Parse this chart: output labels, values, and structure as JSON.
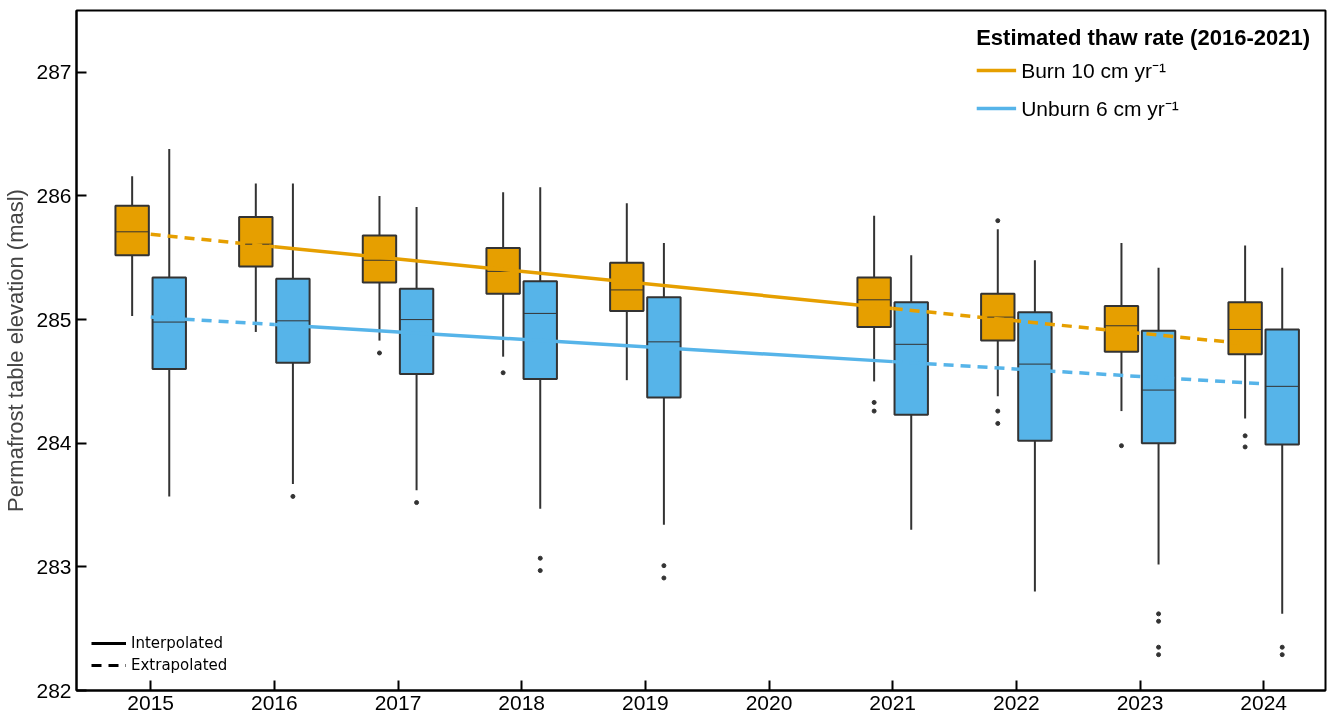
{
  "chart_data": {
    "type": "box",
    "ylabel": "Permafrost table elevation (masl)",
    "legend_title": "Estimated thaw rate (2016-2021)",
    "legend": "top right",
    "grid": false,
    "xlim": [
      2014.4,
      2024.5
    ],
    "xticks": [
      2015,
      2016,
      2017,
      2018,
      2019,
      2020,
      2021,
      2022,
      2023,
      2024
    ],
    "ylim": [
      282,
      287.5
    ],
    "yticks": [
      282,
      283,
      284,
      285,
      286,
      287
    ],
    "series": [
      {
        "color": "#e69f00",
        "x": [
          2014.85,
          2015.85,
          2016.85,
          2017.85,
          2018.85,
          2020.85,
          2021.85,
          2022.85,
          2023.85
        ],
        "boxes": [
          {
            "low": 285.03,
            "q1": 285.52,
            "median": 285.71,
            "q3": 285.92,
            "high": 286.16
          },
          {
            "low": 284.9,
            "q1": 285.43,
            "median": 285.61,
            "q3": 285.83,
            "high": 286.1
          },
          {
            "low": 284.83,
            "q1": 285.3,
            "median": 285.48,
            "q3": 285.68,
            "high": 286.0,
            "outliers": [
              284.73
            ]
          },
          {
            "low": 284.7,
            "q1": 285.21,
            "median": 285.39,
            "q3": 285.58,
            "high": 286.03,
            "outliers": [
              284.57
            ]
          },
          {
            "low": 284.51,
            "q1": 285.07,
            "median": 285.24,
            "q3": 285.46,
            "high": 285.94
          },
          {
            "low": 284.5,
            "q1": 284.94,
            "median": 285.16,
            "q3": 285.34,
            "high": 285.84,
            "outliers": [
              284.33,
              284.26
            ]
          },
          {
            "low": 284.38,
            "q1": 284.83,
            "median": 285.02,
            "q3": 285.21,
            "high": 285.73,
            "outliers": [
              285.8,
              284.26,
              284.16
            ]
          },
          {
            "low": 284.26,
            "q1": 284.74,
            "median": 284.95,
            "q3": 285.11,
            "high": 285.62,
            "outliers": [
              283.98
            ]
          },
          {
            "low": 284.2,
            "q1": 284.72,
            "median": 284.92,
            "q3": 285.14,
            "high": 285.6,
            "outliers": [
              284.06,
              283.97
            ]
          }
        ]
      },
      {
        "color": "#56b4e9",
        "x": [
          2015.15,
          2016.15,
          2017.15,
          2018.15,
          2019.15,
          2021.15,
          2022.15,
          2023.15,
          2024.15
        ],
        "boxes": [
          {
            "low": 283.57,
            "q1": 284.6,
            "median": 284.98,
            "q3": 285.34,
            "high": 286.38
          },
          {
            "low": 283.67,
            "q1": 284.65,
            "median": 284.99,
            "q3": 285.33,
            "high": 286.1,
            "outliers": [
              283.57
            ]
          },
          {
            "low": 283.62,
            "q1": 284.56,
            "median": 285.0,
            "q3": 285.25,
            "high": 285.91,
            "outliers": [
              283.52
            ]
          },
          {
            "low": 283.47,
            "q1": 284.52,
            "median": 285.05,
            "q3": 285.31,
            "high": 286.07,
            "outliers": [
              283.07,
              282.97
            ]
          },
          {
            "low": 283.34,
            "q1": 284.37,
            "median": 284.82,
            "q3": 285.18,
            "high": 285.62,
            "outliers": [
              283.01,
              282.91
            ]
          },
          {
            "low": 283.3,
            "q1": 284.23,
            "median": 284.8,
            "q3": 285.14,
            "high": 285.52
          },
          {
            "low": 282.8,
            "q1": 284.02,
            "median": 284.64,
            "q3": 285.06,
            "high": 285.48
          },
          {
            "low": 283.02,
            "q1": 284.0,
            "median": 284.43,
            "q3": 284.91,
            "high": 285.42,
            "outliers": [
              282.62,
              282.56,
              282.35,
              282.29
            ]
          },
          {
            "low": 282.62,
            "q1": 283.99,
            "median": 284.46,
            "q3": 284.92,
            "high": 285.42,
            "outliers": [
              282.35,
              282.29
            ]
          }
        ]
      },
      {
        "type": "line",
        "name": "Burn 10 cm yr⁻¹",
        "color": "#e69f00",
        "line_style": "solid",
        "x": [
          2016,
          2021
        ],
        "values": [
          285.59,
          285.09
        ]
      },
      {
        "type": "line",
        "color": "#e69f00",
        "line_style": "dashed",
        "x": [
          2015,
          2016
        ],
        "values": [
          285.69,
          285.59
        ]
      },
      {
        "type": "line",
        "color": "#e69f00",
        "line_style": "dashed",
        "x": [
          2021,
          2024
        ],
        "values": [
          285.09,
          284.79
        ]
      },
      {
        "type": "line",
        "name": "Unburn 6 cm yr⁻¹",
        "color": "#56b4e9",
        "line_style": "solid",
        "x": [
          2016,
          2021
        ],
        "values": [
          284.96,
          284.66
        ]
      },
      {
        "type": "line",
        "color": "#56b4e9",
        "line_style": "dashed",
        "x": [
          2015,
          2016
        ],
        "values": [
          285.02,
          284.96
        ]
      },
      {
        "type": "line",
        "color": "#56b4e9",
        "line_style": "dashed",
        "x": [
          2021,
          2024
        ],
        "values": [
          284.66,
          284.48
        ]
      }
    ],
    "annotations": [
      "Interpolated",
      "Extrapolated"
    ]
  }
}
